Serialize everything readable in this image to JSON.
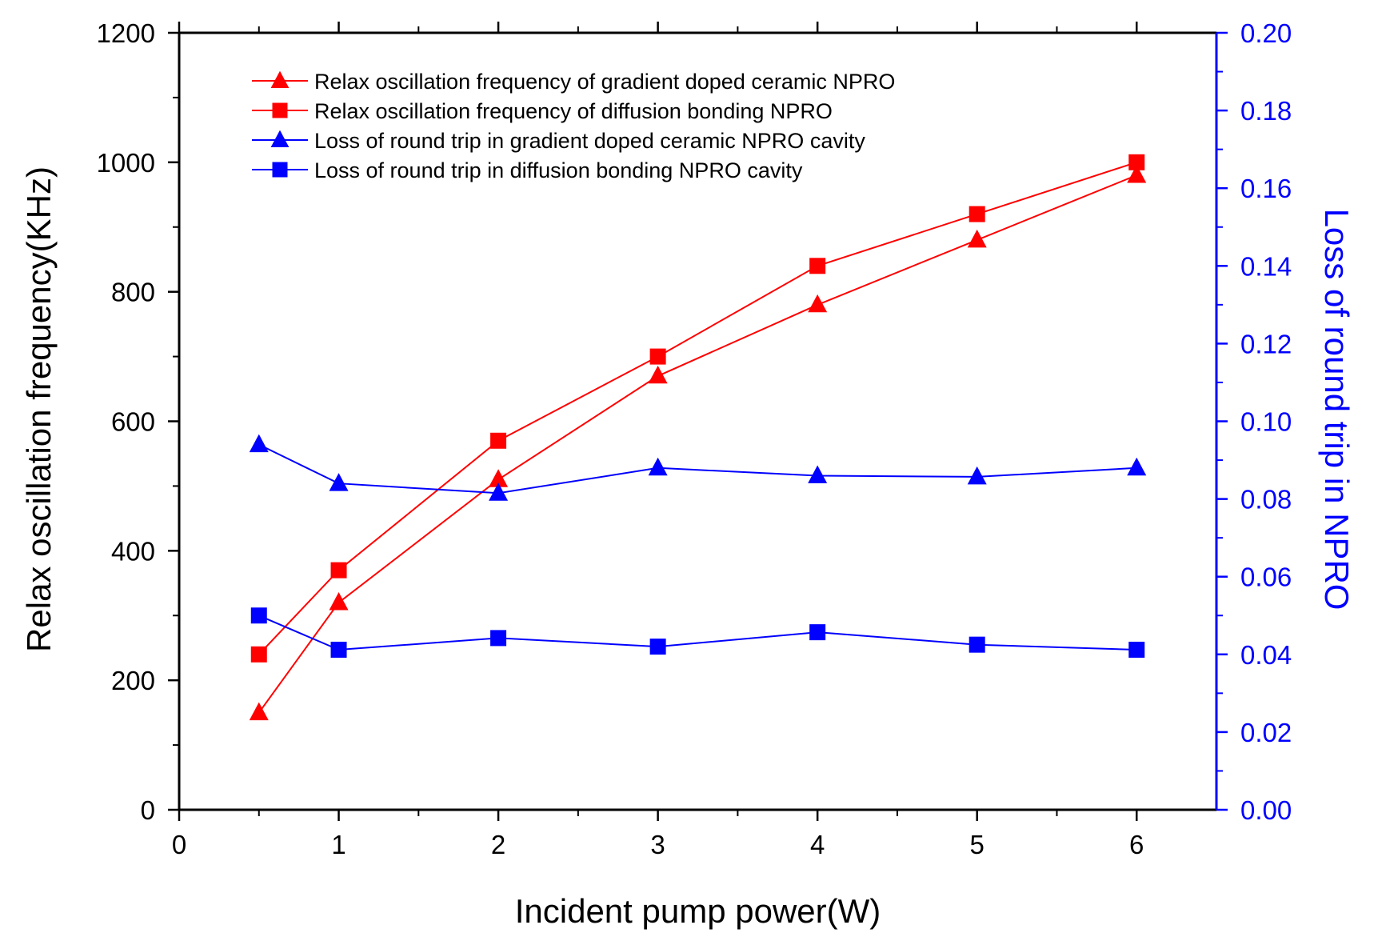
{
  "chart_data": {
    "type": "line",
    "xlabel": "Incident pump power(W)",
    "ylabel": "Relax oscillation frequency(KHz)",
    "y2label": "Loss of round trip in NPRO",
    "xlim": [
      0,
      6.5
    ],
    "ylim": [
      0,
      1200
    ],
    "y2lim": [
      0,
      0.2
    ],
    "x_ticks": [
      "0",
      "1",
      "2",
      "3",
      "4",
      "5",
      "6"
    ],
    "y_ticks": [
      "0",
      "200",
      "400",
      "600",
      "800",
      "1000",
      "1200"
    ],
    "y2_ticks": [
      "0.00",
      "0.02",
      "0.04",
      "0.06",
      "0.08",
      "0.10",
      "0.12",
      "0.14",
      "0.16",
      "0.18",
      "0.20"
    ],
    "legend_position": "top-left",
    "colors": {
      "red": "#ff0000",
      "blue": "#0000ff",
      "axis": "#000000",
      "right_axis": "#0000ff"
    },
    "series": [
      {
        "name": "Relax oscillation frequency of gradient doped ceramic NPRO",
        "axis": "left",
        "color": "#ff0000",
        "marker": "triangle",
        "x": [
          0.5,
          1,
          2,
          3,
          4,
          5,
          6
        ],
        "values": [
          150,
          320,
          510,
          670,
          780,
          880,
          980
        ]
      },
      {
        "name": "Relax oscillation frequency of diffusion bonding NPRO",
        "axis": "left",
        "color": "#ff0000",
        "marker": "square",
        "x": [
          0.5,
          1,
          2,
          3,
          4,
          5,
          6
        ],
        "values": [
          240,
          370,
          570,
          700,
          840,
          920,
          1000
        ]
      },
      {
        "name": "Loss of round trip in gradient doped ceramic NPRO cavity",
        "axis": "right",
        "color": "#0000ff",
        "marker": "triangle",
        "x": [
          0.5,
          1,
          2,
          3,
          4,
          5,
          6
        ],
        "values": [
          0.094,
          0.084,
          0.0815,
          0.088,
          0.086,
          0.0857,
          0.088
        ]
      },
      {
        "name": "Loss of round trip in diffusion bonding NPRO cavity",
        "axis": "right",
        "color": "#0000ff",
        "marker": "square",
        "x": [
          0.5,
          1,
          2,
          3,
          4,
          5,
          6
        ],
        "values": [
          0.05,
          0.0412,
          0.0442,
          0.042,
          0.0457,
          0.0425,
          0.0412
        ]
      }
    ]
  }
}
